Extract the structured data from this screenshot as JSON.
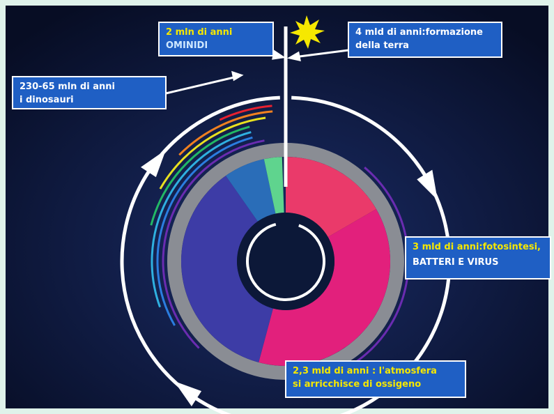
{
  "labels": [
    {
      "lines": [
        "2 mln di anni",
        "OMINIDI"
      ]
    },
    {
      "lines": [
        "4 mld di anni:formazione",
        "della terra"
      ]
    },
    {
      "lines": [
        "230-65 mln di anni",
        "i dinosauri"
      ]
    },
    {
      "lines": [
        "3 mld di anni:fotosintesi,",
        "BATTERI E VIRUS"
      ]
    },
    {
      "lines": [
        "2,3 mld di anni : l'atmosfera",
        "si arricchisce di ossigeno"
      ]
    }
  ]
}
